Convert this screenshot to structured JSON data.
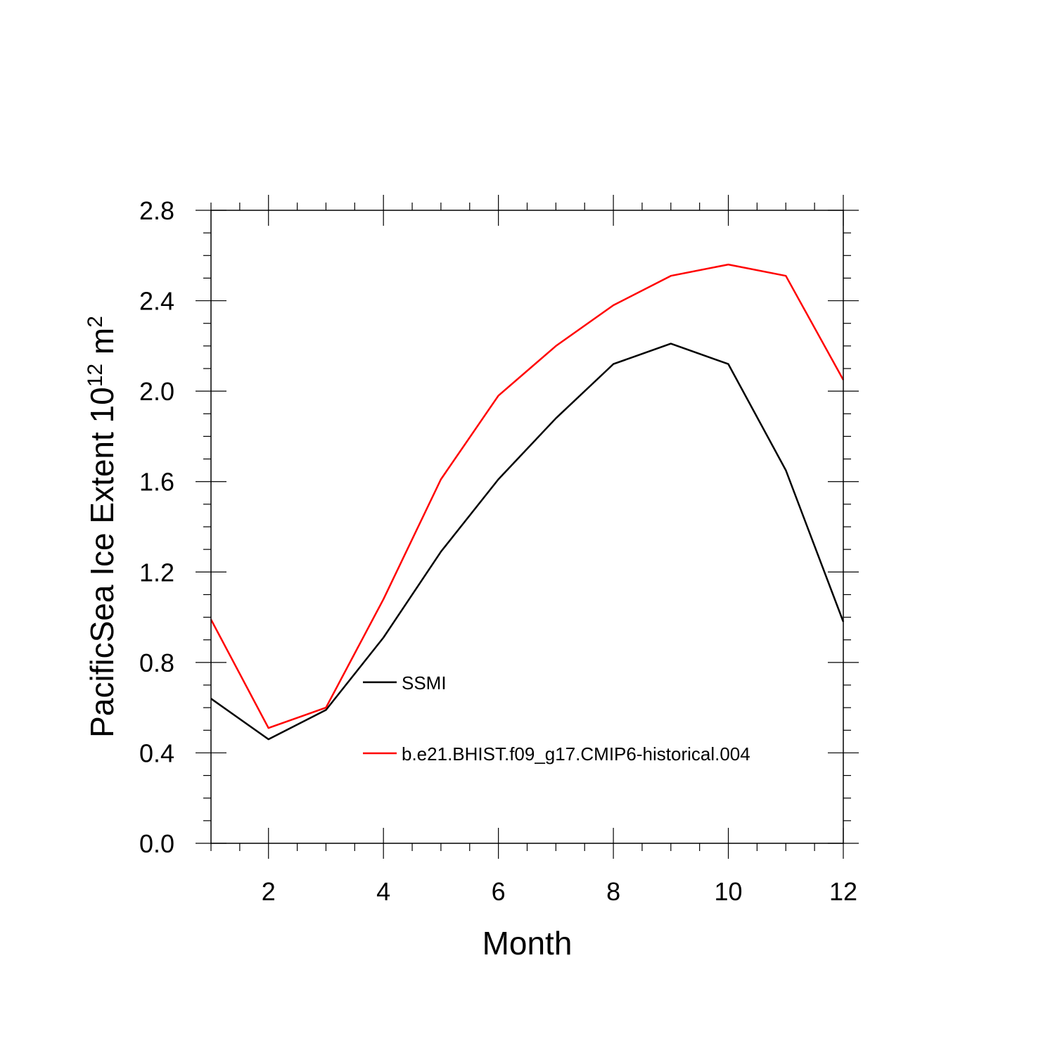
{
  "chart_data": {
    "type": "line",
    "title": "",
    "xlabel": "Month",
    "ylabel": "PacificSea Ice Extent 10",
    "ylabel_sup": "12",
    "ylabel_unit": " m",
    "ylabel_unit_sup": "2",
    "xlim": [
      1,
      12
    ],
    "ylim": [
      0,
      2.8
    ],
    "x_ticks": [
      2,
      4,
      6,
      8,
      10,
      12
    ],
    "y_ticks": [
      0.0,
      0.4,
      0.8,
      1.2,
      1.6,
      2.0,
      2.4,
      2.8
    ],
    "x_tick_labels": [
      "2",
      "4",
      "6",
      "8",
      "10",
      "12"
    ],
    "y_tick_labels": [
      "0.0",
      "0.4",
      "0.8",
      "1.2",
      "1.6",
      "2.0",
      "2.4",
      "2.8"
    ],
    "x": [
      1,
      2,
      3,
      4,
      5,
      6,
      7,
      8,
      9,
      10,
      11,
      12
    ],
    "series": [
      {
        "name": "SSMI",
        "color": "#000000",
        "values": [
          0.64,
          0.46,
          0.59,
          0.91,
          1.29,
          1.61,
          1.88,
          2.12,
          2.21,
          2.12,
          1.65,
          0.98
        ]
      },
      {
        "name": "b.e21.BHIST.f09_g17.CMIP6-historical.004",
        "color": "#ff0000",
        "values": [
          0.99,
          0.51,
          0.6,
          1.08,
          1.61,
          1.98,
          2.2,
          2.38,
          2.51,
          2.56,
          2.51,
          2.05
        ]
      }
    ],
    "grid": false,
    "legend_position": "center"
  }
}
